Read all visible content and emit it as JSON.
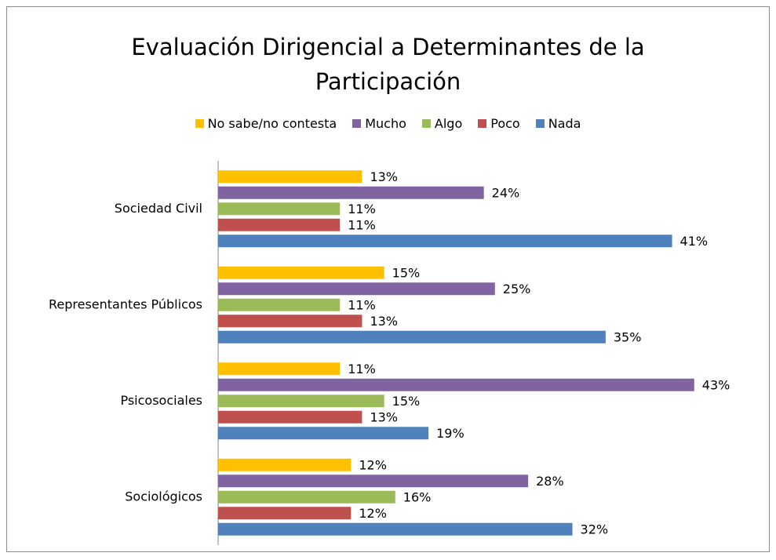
{
  "chart_data": {
    "type": "hbar",
    "title": "Evaluación Dirigencial a Determinantes de la Participación",
    "categories": [
      "Sociedad Civil",
      "Representantes Públicos",
      "Psicosociales",
      "Sociológicos"
    ],
    "xlim": [
      0,
      45
    ],
    "legend": "top",
    "series": [
      {
        "name": "No sabe/no contesta",
        "color": "#ffc000",
        "values": [
          13,
          15,
          11,
          12
        ],
        "value_labels": [
          "13%",
          "15%",
          "11%",
          "12%"
        ]
      },
      {
        "name": "Mucho",
        "color": "#8064a2",
        "values": [
          24,
          25,
          43,
          28
        ],
        "value_labels": [
          "24%",
          "25%",
          "43%",
          "28%"
        ]
      },
      {
        "name": "Algo",
        "color": "#9bbb59",
        "values": [
          11,
          11,
          15,
          16
        ],
        "value_labels": [
          "11%",
          "11%",
          "15%",
          "16%"
        ]
      },
      {
        "name": "Poco",
        "color": "#c0504d",
        "values": [
          11,
          13,
          13,
          12
        ],
        "value_labels": [
          "11%",
          "13%",
          "13%",
          "12%"
        ]
      },
      {
        "name": "Nada",
        "color": "#4f81bd",
        "values": [
          41,
          35,
          19,
          32
        ],
        "value_labels": [
          "41%",
          "35%",
          "19%",
          "32%"
        ]
      }
    ]
  }
}
